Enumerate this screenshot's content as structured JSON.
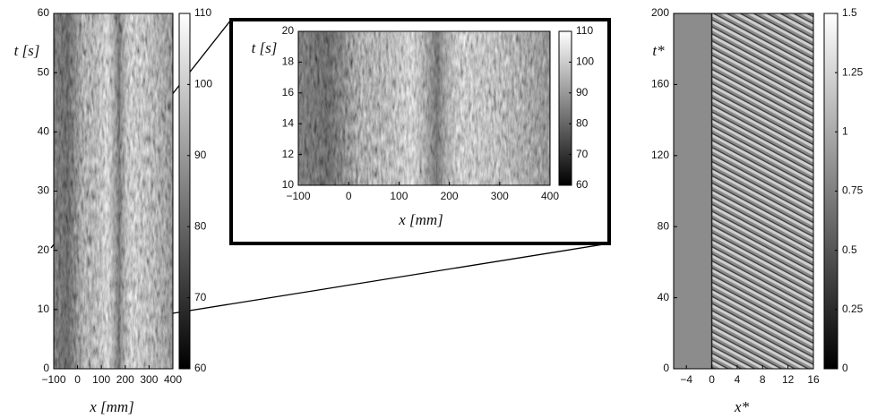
{
  "chart_data": [
    {
      "type": "heatmap",
      "x_label": "x [mm]",
      "y_label": "t [s]",
      "xlim": [
        -100,
        400
      ],
      "xticks": [
        {
          "value": -100,
          "label": "−100"
        },
        0,
        100,
        200,
        300,
        400
      ],
      "ylim": [
        0,
        60
      ],
      "yticks": [
        0,
        10,
        20,
        30,
        40,
        50,
        60
      ],
      "colorbar": {
        "lim": [
          60,
          110
        ],
        "ticks": [
          60,
          70,
          80,
          90,
          100,
          110
        ]
      }
    },
    {
      "type": "heatmap",
      "x_label": "x [mm]",
      "y_label": "t [s]",
      "xlim": [
        -100,
        400
      ],
      "xticks": [
        {
          "value": -100,
          "label": "−100"
        },
        0,
        100,
        200,
        300,
        400
      ],
      "ylim": [
        10,
        20
      ],
      "yticks": [
        10,
        12,
        14,
        16,
        18,
        20
      ],
      "colorbar": {
        "lim": [
          60,
          110
        ],
        "ticks": [
          60,
          70,
          80,
          90,
          100,
          110
        ]
      }
    },
    {
      "type": "heatmap",
      "x_label": "x*",
      "y_label": "t*",
      "xlim": [
        -6,
        16
      ],
      "xticks": [
        {
          "value": -4,
          "label": "−4"
        },
        0,
        4,
        8,
        12,
        16
      ],
      "ylim": [
        0,
        200
      ],
      "yticks": [
        0,
        40,
        80,
        120,
        160,
        200
      ],
      "colorbar": {
        "lim": [
          0,
          1.5
        ],
        "ticks": [
          0,
          0.25,
          0.5,
          0.75,
          1,
          1.25,
          1.5
        ]
      }
    }
  ]
}
